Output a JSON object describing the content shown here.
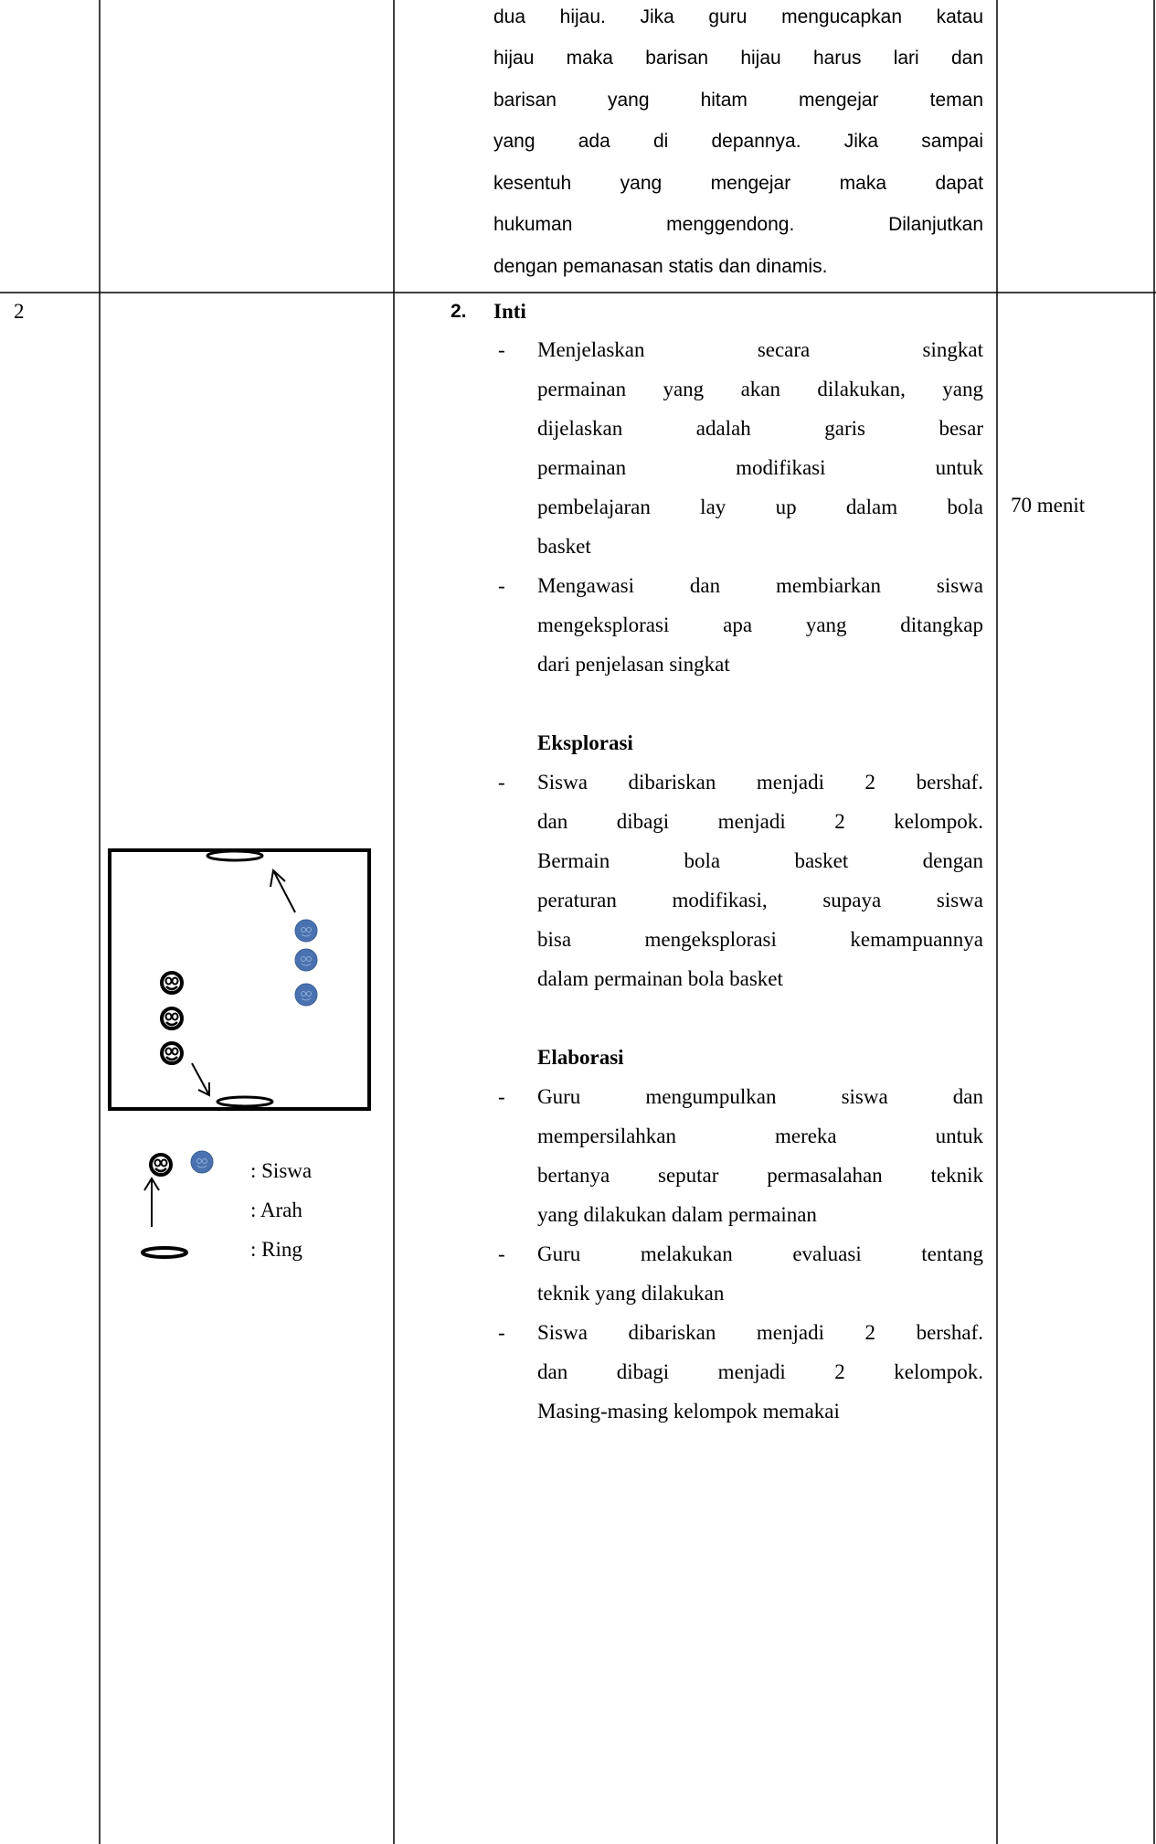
{
  "table": {
    "rows": [
      {
        "lines": [
          "dua hijau. Jika guru mengucapkan katau",
          "hijau maka barisan hijau harus lari dan",
          "barisan yang hitam mengejar teman",
          "yang ada di depannya. Jika sampai",
          "kesentuh yang mengejar maka dapat",
          "hukuman menggendong. Dilanjutkan",
          "dengan pemanasan statis dan dinamis."
        ]
      },
      {
        "no": "2",
        "section": {
          "number": "2.",
          "title": "Inti"
        },
        "bullet": "-",
        "blocks": [
          {
            "bullets": [
              [
                "Menjelaskan secara singkat",
                "permainan yang akan dilakukan, yang",
                "dijelaskan adalah garis besar",
                "permainan modifikasi untuk",
                "pembelajaran lay up dalam bola",
                "basket"
              ],
              [
                "Mengawasi dan membiarkan siswa",
                "mengeksplorasi apa yang ditangkap",
                "dari penjelasan singkat"
              ]
            ]
          },
          {
            "title": "Eksplorasi",
            "bullets": [
              [
                "Siswa dibariskan menjadi 2 bershaf.",
                "dan dibagi menjadi 2 kelompok.",
                "Bermain bola basket dengan",
                "peraturan modifikasi, supaya siswa",
                "bisa mengeksplorasi kemampuannya",
                "dalam permainan bola basket"
              ]
            ]
          },
          {
            "title": "Elaborasi",
            "bullets": [
              [
                "Guru mengumpulkan siswa dan",
                "mempersilahkan mereka untuk",
                "bertanya seputar permasalahan teknik",
                "yang dilakukan dalam permainan"
              ],
              [
                "Guru melakukan evaluasi tentang",
                "teknik yang dilakukan"
              ],
              [
                "Siswa dibariskan menjadi 2 bershaf.",
                "dan dibagi menjadi 2 kelompok.",
                "Masing-masing kelompok memakai"
              ]
            ]
          }
        ],
        "time": "70 menit",
        "legend": [
          ": Siswa",
          ": Arah",
          ": Ring"
        ]
      }
    ]
  }
}
